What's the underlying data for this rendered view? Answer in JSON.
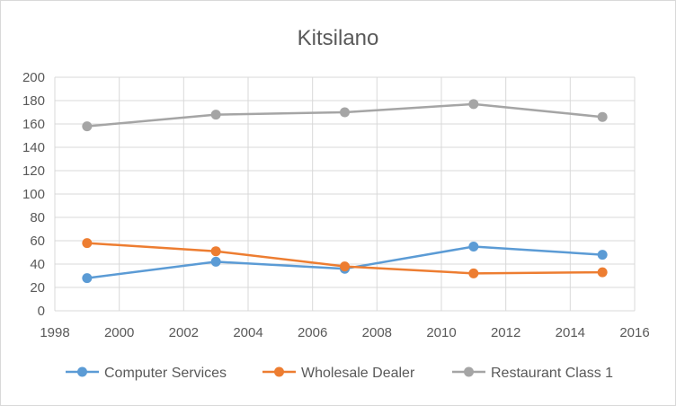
{
  "chart_data": {
    "type": "line",
    "title": "Kitsilano",
    "xlabel": "",
    "ylabel": "",
    "xlim": [
      1998,
      2016
    ],
    "ylim": [
      0,
      200
    ],
    "x_ticks": [
      "1998",
      "2000",
      "2002",
      "2004",
      "2006",
      "2008",
      "2010",
      "2012",
      "2014",
      "2016"
    ],
    "y_ticks": [
      "0",
      "20",
      "40",
      "60",
      "80",
      "100",
      "120",
      "140",
      "160",
      "180",
      "200"
    ],
    "grid": "both",
    "legend_position": "bottom",
    "x": [
      1999,
      2003,
      2007,
      2011,
      2015
    ],
    "series": [
      {
        "name": "Computer Services",
        "color": "#5b9bd5",
        "values": [
          28,
          42,
          36,
          55,
          48
        ]
      },
      {
        "name": "Wholesale Dealer",
        "color": "#ed7d31",
        "values": [
          58,
          51,
          38,
          32,
          33
        ]
      },
      {
        "name": "Restaurant Class 1",
        "color": "#a5a5a5",
        "values": [
          158,
          168,
          170,
          177,
          166
        ]
      }
    ]
  }
}
